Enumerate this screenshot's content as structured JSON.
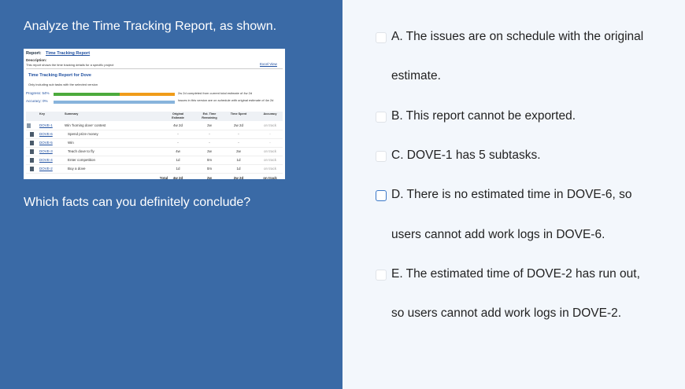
{
  "question": "Analyze the Time Tracking Report, as shown.",
  "report": {
    "label": "Report:",
    "name": "Time Tracking Report",
    "description_label": "Description:",
    "description": "This report shows the time tracking details for a specific project",
    "excel": "Excel View",
    "heading": "Time Tracking Report for Dove",
    "note": "Only including sub tasks with the selected version",
    "progress": "Progress: 54%",
    "accuracy": "Accuracy: 0%",
    "progress_note": "2w 2d completed from current total estimate of 4w 2d",
    "accuracy_note": "Issues in this version are on schedule with original estimate of 4w 2d",
    "columns": [
      "Key",
      "Summary",
      "Original Estimate",
      "Est. Time Remaining",
      "Time Spent",
      "Accuracy"
    ],
    "rows": [
      [
        "DOVE-1",
        "Win 'homing dove' contest",
        "4w 2d",
        "2w",
        "2w 2d",
        "on track"
      ],
      [
        "DOVE-6",
        "Spend prize money",
        "-",
        "-",
        "-",
        "-"
      ],
      [
        "DOVE-5",
        "Win",
        "-",
        "-",
        "-",
        "-"
      ],
      [
        "DOVE-3",
        "Teach dove to fly",
        "4w",
        "2w",
        "2w",
        "on track"
      ],
      [
        "DOVE-4",
        "Enter competition",
        "1d",
        "0m",
        "1d",
        "on track"
      ],
      [
        "DOVE-2",
        "Buy a dove",
        "1d",
        "0m",
        "1d",
        "on track"
      ]
    ],
    "total": [
      "Total",
      "4w 2d",
      "2w",
      "2w 2d",
      "on track"
    ]
  },
  "prompt": "Which facts can you definitely conclude?",
  "options": [
    {
      "lines": [
        "A. The issues are on schedule with the original",
        "estimate."
      ]
    },
    {
      "lines": [
        "B. This report cannot be exported."
      ]
    },
    {
      "lines": [
        "C. DOVE-1 has 5 subtasks."
      ]
    },
    {
      "lines": [
        "D. There is no estimated time in DOVE-6, so",
        "users cannot add work logs in DOVE-6."
      ]
    },
    {
      "lines": [
        "E. The estimated time of DOVE-2 has run out,",
        "so users cannot add work logs in DOVE-2."
      ]
    }
  ]
}
